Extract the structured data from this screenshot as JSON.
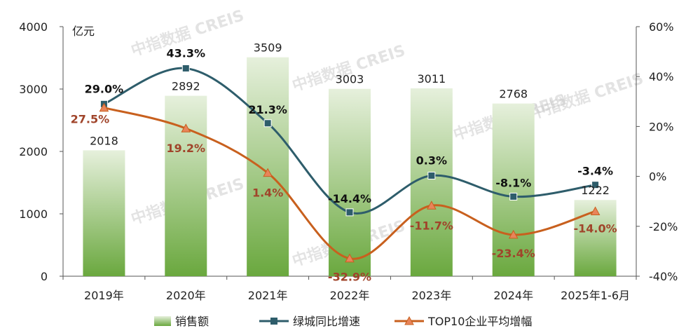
{
  "chart_data": {
    "type": "bar",
    "unit_label": "亿元",
    "categories": [
      "2019年",
      "2020年",
      "2021年",
      "2022年",
      "2023年",
      "2024年",
      "2025年1-6月"
    ],
    "bar_series": {
      "name": "销售额",
      "values": [
        2018,
        2892,
        3509,
        3003,
        3011,
        2768,
        1222
      ]
    },
    "line_series": [
      {
        "name": "绿城同比增速",
        "values": [
          29.0,
          43.3,
          21.3,
          -14.4,
          0.3,
          -8.1,
          -3.4
        ],
        "labels": [
          "29.0%",
          "43.3%",
          "21.3%",
          "-14.4%",
          "0.3%",
          "-8.1%",
          "-3.4%"
        ],
        "color": "#2e5d6b",
        "marker": "square"
      },
      {
        "name": "TOP10企业平均增幅",
        "values": [
          27.5,
          19.2,
          1.4,
          -32.9,
          -11.7,
          -23.4,
          -14.0
        ],
        "labels": [
          "27.5%",
          "19.2%",
          "1.4%",
          "-32.9%",
          "-11.7%",
          "-23.4%",
          "-14.0%"
        ],
        "color": "#c8601e",
        "marker": "triangle"
      }
    ],
    "ylim_left": [
      0,
      4000
    ],
    "yticks_left": [
      "0",
      "1000",
      "2000",
      "3000",
      "4000"
    ],
    "ylim_right": [
      -40,
      60
    ],
    "yticks_right": [
      "-40%",
      "-20%",
      "0%",
      "20%",
      "40%",
      "60%"
    ],
    "legend_position": "bottom",
    "grid": false,
    "colors": {
      "bar_top": "#e6f0dc",
      "bar_bottom": "#6aa83e"
    }
  },
  "watermark": "中指数据 CREIS"
}
